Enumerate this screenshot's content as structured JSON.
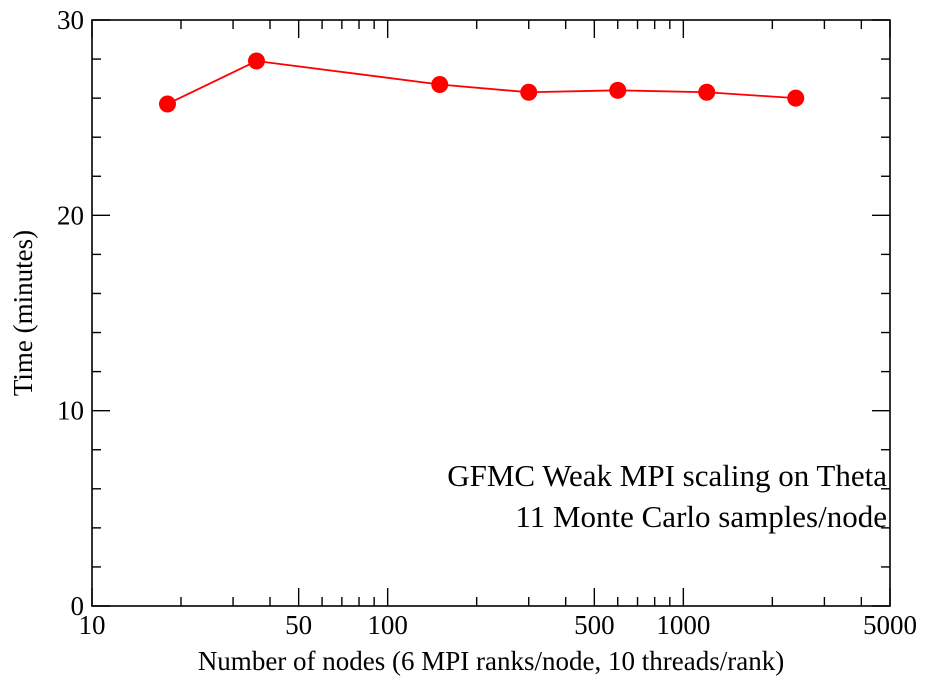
{
  "chart_data": {
    "type": "line",
    "title": "",
    "xlabel": "Number of nodes (6 MPI ranks/node, 10 threads/rank)",
    "ylabel": "Time (minutes)",
    "xscale": "log",
    "xlim": [
      10,
      5000
    ],
    "ylim": [
      0,
      30
    ],
    "x_ticks": [
      10,
      50,
      100,
      500,
      1000,
      5000
    ],
    "x_tick_labels": [
      "10",
      "50",
      "100",
      "500",
      "1000",
      "5000"
    ],
    "y_ticks": [
      0,
      10,
      20,
      30
    ],
    "y_tick_labels": [
      "0",
      "10",
      "20",
      "30"
    ],
    "grid": false,
    "legend": "none",
    "series": [
      {
        "color": "#ff0000",
        "marker": "circle",
        "x": [
          18,
          36,
          150,
          300,
          600,
          1200,
          2400
        ],
        "y": [
          25.7,
          27.9,
          26.7,
          26.3,
          26.4,
          26.3,
          26.0
        ]
      }
    ],
    "annotations": [
      "GFMC Weak MPI scaling on Theta",
      "11 Monte Carlo samples/node"
    ]
  }
}
